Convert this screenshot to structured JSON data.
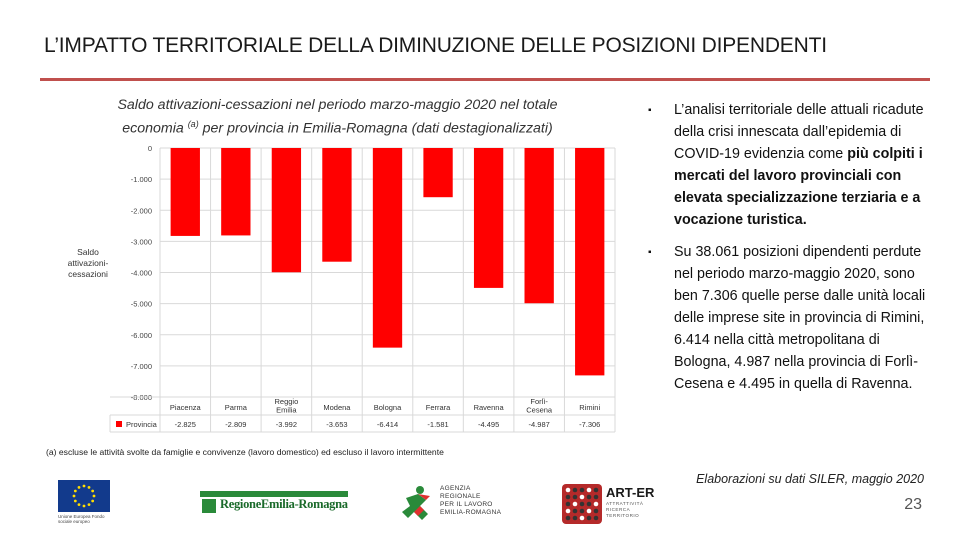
{
  "title": "L’IMPATTO TERRITORIALE DELLA DIMINUZIONE DELLE POSIZIONI DIPENDENTI",
  "chart_caption": {
    "line1": "Saldo attivazioni-cessazioni nel periodo marzo-maggio 2020 nel totale",
    "line2_pre": "economia ",
    "line2_sup": "(a)",
    "line2_post": " per provincia in Emilia-Romagna (dati destagionalizzati)"
  },
  "chart_data": {
    "type": "bar",
    "title": "Saldo attivazioni-cessazioni nel periodo marzo-maggio 2020 nel totale economia per provincia in Emilia-Romagna (dati destagionalizzati)",
    "ylabel": "Saldo attivazioni-cessazioni",
    "ylabel_lines": [
      "Saldo",
      "attivazioni-",
      "cessazioni"
    ],
    "xlabel": "",
    "ylim": [
      -8000,
      0
    ],
    "yticks": [
      0,
      -1000,
      -2000,
      -3000,
      -4000,
      -5000,
      -6000,
      -7000,
      -8000
    ],
    "ytick_labels": [
      "0",
      "-1.000",
      "-2.000",
      "-3.000",
      "-4.000",
      "-5.000",
      "-6.000",
      "-7.000",
      "-8.000"
    ],
    "categories": [
      "Piacenza",
      "Parma",
      "Reggio Emilia",
      "Modena",
      "Bologna",
      "Ferrara",
      "Ravenna",
      "Forlì-Cesena",
      "Rimini"
    ],
    "category_lines": [
      [
        "Piacenza"
      ],
      [
        "Parma"
      ],
      [
        "Reggio",
        "Emilia"
      ],
      [
        "Modena"
      ],
      [
        "Bologna"
      ],
      [
        "Ferrara"
      ],
      [
        "Ravenna"
      ],
      [
        "Forlì-",
        "Cesena"
      ],
      [
        "Rimini"
      ]
    ],
    "series": [
      {
        "name": "Provincia",
        "values": [
          -2825,
          -2809,
          -3992,
          -3653,
          -6414,
          -1581,
          -4495,
          -4987,
          -7306
        ],
        "labels": [
          "-2.825",
          "-2.809",
          "-3.992",
          "-3.653",
          "-6.414",
          "-1.581",
          "-4.495",
          "-4.987",
          "-7.306"
        ],
        "color": "#ff0000"
      }
    ],
    "grid": true,
    "legend": "data-table-below"
  },
  "bullets": [
    {
      "mark": "▪",
      "parts": [
        {
          "text": "L’analisi territoriale delle attuali ricadute della crisi innescata dall’epidemia di COVID-19 evidenzia come ",
          "bold": false
        },
        {
          "text": "più colpiti i mercati del lavoro provinciali con elevata specializzazione terziaria e a vocazione turistica.",
          "bold": true
        }
      ]
    },
    {
      "mark": "▪",
      "parts": [
        {
          "text": "Su 38.061 posizioni dipendenti perdute nel periodo marzo-maggio 2020, sono ben 7.306 quelle perse dalle unità locali delle imprese site in provincia di Rimini, 6.414 nella città metropolitana di Bologna, 4.987 nella provincia di Forlì-Cesena e 4.495 in quella di Ravenna.",
          "bold": false
        }
      ]
    }
  ],
  "footnote": "(a) escluse le attività svolte da famiglie e convivenze (lavoro domestico) ed escluso il lavoro intermittente",
  "source": "Elaborazioni su dati SILER, maggio 2020",
  "page_number": "23",
  "logos": {
    "eu_text": "Unione Europea Fondo sociale europeo",
    "rer": "RegioneEmilia-Romagna",
    "agency_lines": [
      "AGENZIA",
      "REGIONALE",
      "PER IL LAVORO",
      "EMILIA-ROMAGNA"
    ],
    "arter_name": "ART-ER",
    "arter_tag": [
      "ATTRATTIVITÀ",
      "RICERCA",
      "TERRITORIO"
    ]
  },
  "colors": {
    "accent_rule": "#c0504d",
    "bar": "#ff0000",
    "eu_blue": "#123a8c",
    "green": "#2a8a3a"
  }
}
